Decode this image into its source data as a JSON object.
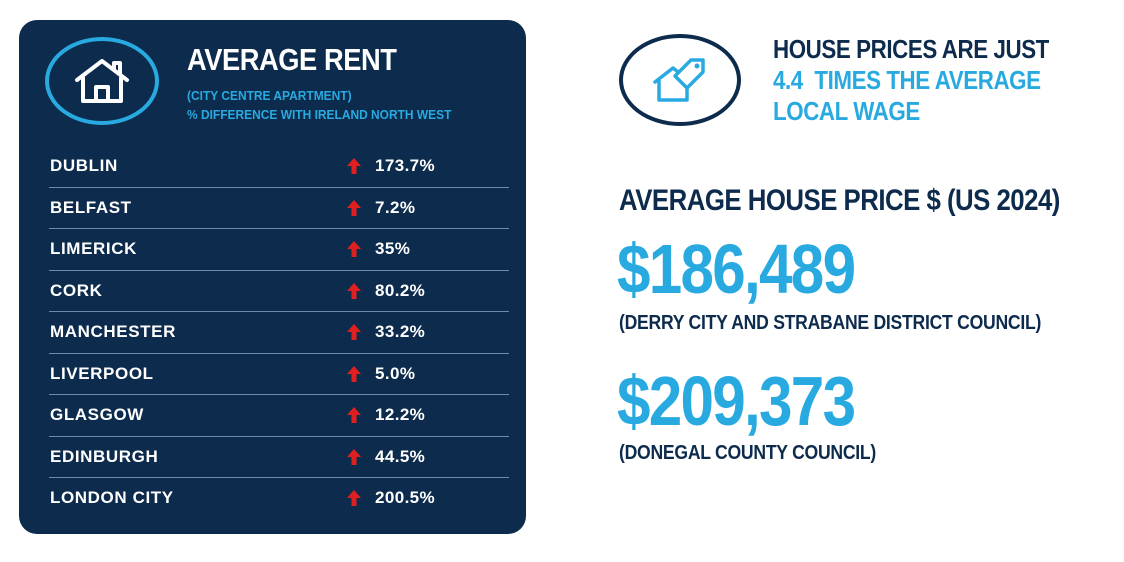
{
  "rent_panel": {
    "title": "AVERAGE RENT",
    "subtitle_line1": "(CITY CENTRE APARTMENT)",
    "subtitle_line2": "% DIFFERENCE WITH IRELAND NORTH WEST",
    "icon": "house-icon",
    "rows": [
      {
        "city": "DUBLIN",
        "value": "173.7%",
        "trend": "up"
      },
      {
        "city": "BELFAST",
        "value": "7.2%",
        "trend": "up"
      },
      {
        "city": "LIMERICK",
        "value": "35%",
        "trend": "up"
      },
      {
        "city": "CORK",
        "value": "80.2%",
        "trend": "up"
      },
      {
        "city": "MANCHESTER",
        "value": "33.2%",
        "trend": "up"
      },
      {
        "city": "LIVERPOOL",
        "value": "5.0%",
        "trend": "up"
      },
      {
        "city": "GLASGOW",
        "value": "12.2%",
        "trend": "up"
      },
      {
        "city": "EDINBURGH",
        "value": "44.5%",
        "trend": "up"
      },
      {
        "city": "LONDON CITY",
        "value": "200.5%",
        "trend": "up"
      }
    ]
  },
  "wage_ratio": {
    "icon": "house-price-tag-icon",
    "line1": "HOUSE PRICES ARE JUST",
    "ratio": "4.4",
    "line2_rest": "TIMES THE AVERAGE",
    "line3": "LOCAL WAGE"
  },
  "house_price": {
    "heading": "AVERAGE HOUSE PRICE $ (US 2024)",
    "items": [
      {
        "price": "$186,489",
        "council": "(DERRY CITY AND STRABANE DISTRICT COUNCIL)"
      },
      {
        "price": "$209,373",
        "council": "(DONEGAL COUNTY COUNCIL)"
      }
    ]
  },
  "colors": {
    "navy": "#0d2b4c",
    "accent_blue": "#28aae1",
    "arrow_red": "#e02020",
    "divider": "#6f8aa6"
  }
}
